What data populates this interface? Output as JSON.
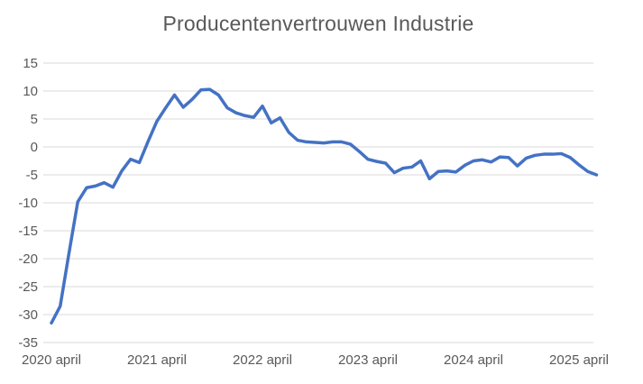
{
  "chart_data": {
    "type": "line",
    "title": "Producentenvertrouwen Industrie",
    "series_name": "Producentenvertrouwen Industrie",
    "x": [
      "2020-04",
      "2020-05",
      "2020-06",
      "2020-07",
      "2020-08",
      "2020-09",
      "2020-10",
      "2020-11",
      "2020-12",
      "2021-01",
      "2021-02",
      "2021-03",
      "2021-04",
      "2021-05",
      "2021-06",
      "2021-07",
      "2021-08",
      "2021-09",
      "2021-10",
      "2021-11",
      "2021-12",
      "2022-01",
      "2022-02",
      "2022-03",
      "2022-04",
      "2022-05",
      "2022-06",
      "2022-07",
      "2022-08",
      "2022-09",
      "2022-10",
      "2022-11",
      "2022-12",
      "2023-01",
      "2023-02",
      "2023-03",
      "2023-04",
      "2023-05",
      "2023-06",
      "2023-07",
      "2023-08",
      "2023-09",
      "2023-10",
      "2023-11",
      "2023-12",
      "2024-01",
      "2024-02",
      "2024-03",
      "2024-04",
      "2024-05",
      "2024-06",
      "2024-07",
      "2024-08",
      "2024-09",
      "2024-10",
      "2024-11",
      "2024-12",
      "2025-01",
      "2025-02",
      "2025-03",
      "2025-04",
      "2025-05",
      "2025-06"
    ],
    "values": [
      -31.5,
      -28.5,
      -19,
      -9.8,
      -7.3,
      -7,
      -6.4,
      -7.2,
      -4.3,
      -2.2,
      -2.8,
      1,
      4.6,
      7,
      9.3,
      7.1,
      8.5,
      10.2,
      10.3,
      9.3,
      7,
      6.1,
      5.6,
      5.3,
      7.3,
      4.3,
      5.2,
      2.6,
      1.2,
      0.9,
      0.8,
      0.7,
      0.9,
      0.9,
      0.5,
      -0.8,
      -2.2,
      -2.6,
      -2.9,
      -4.6,
      -3.8,
      -3.6,
      -2.5,
      -5.7,
      -4.4,
      -4.3,
      -4.5,
      -3.3,
      -2.5,
      -2.3,
      -2.7,
      -1.8,
      -1.9,
      -3.4,
      -2,
      -1.5,
      -1.3,
      -1.3,
      -1.2,
      -1.9,
      -3.2,
      -4.4,
      -5
    ],
    "x_tick_labels": [
      "2020 april",
      "2021 april",
      "2022 april",
      "2023 april",
      "2024 april",
      "2025 april"
    ],
    "x_tick_indices": [
      0,
      12,
      24,
      36,
      48,
      60
    ],
    "y_ticks": [
      15,
      10,
      5,
      0,
      -5,
      -10,
      -15,
      -20,
      -25,
      -30,
      -35
    ],
    "ylim": [
      -35,
      15
    ],
    "grid": "horizontal-only",
    "legend": "none",
    "line_color": "#4472C4",
    "gridline_color": "#D9D9D9",
    "text_color": "#595959",
    "background_color": "#FFFFFF"
  }
}
